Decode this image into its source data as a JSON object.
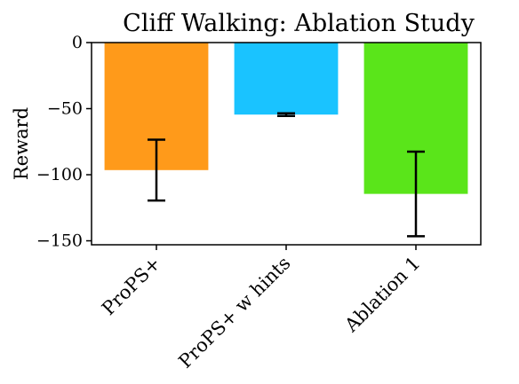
{
  "chart_data": {
    "type": "bar",
    "title": "Cliff Walking: Ablation Study",
    "xlabel": "",
    "ylabel": "Reward",
    "ylim": [
      -153,
      0
    ],
    "yticks": [
      0,
      -50,
      -100,
      -150
    ],
    "ytick_labels": [
      "0",
      "−50",
      "−100",
      "−150"
    ],
    "grid": false,
    "categories": [
      "ProPS+",
      "ProPS+ w hints",
      "Ablation 1"
    ],
    "values": [
      -96.5,
      -54.5,
      -114.5
    ],
    "errors": [
      23,
      1,
      32
    ],
    "colors": [
      "#FF9A1A",
      "#1AC3FF",
      "#5AE51A"
    ]
  }
}
